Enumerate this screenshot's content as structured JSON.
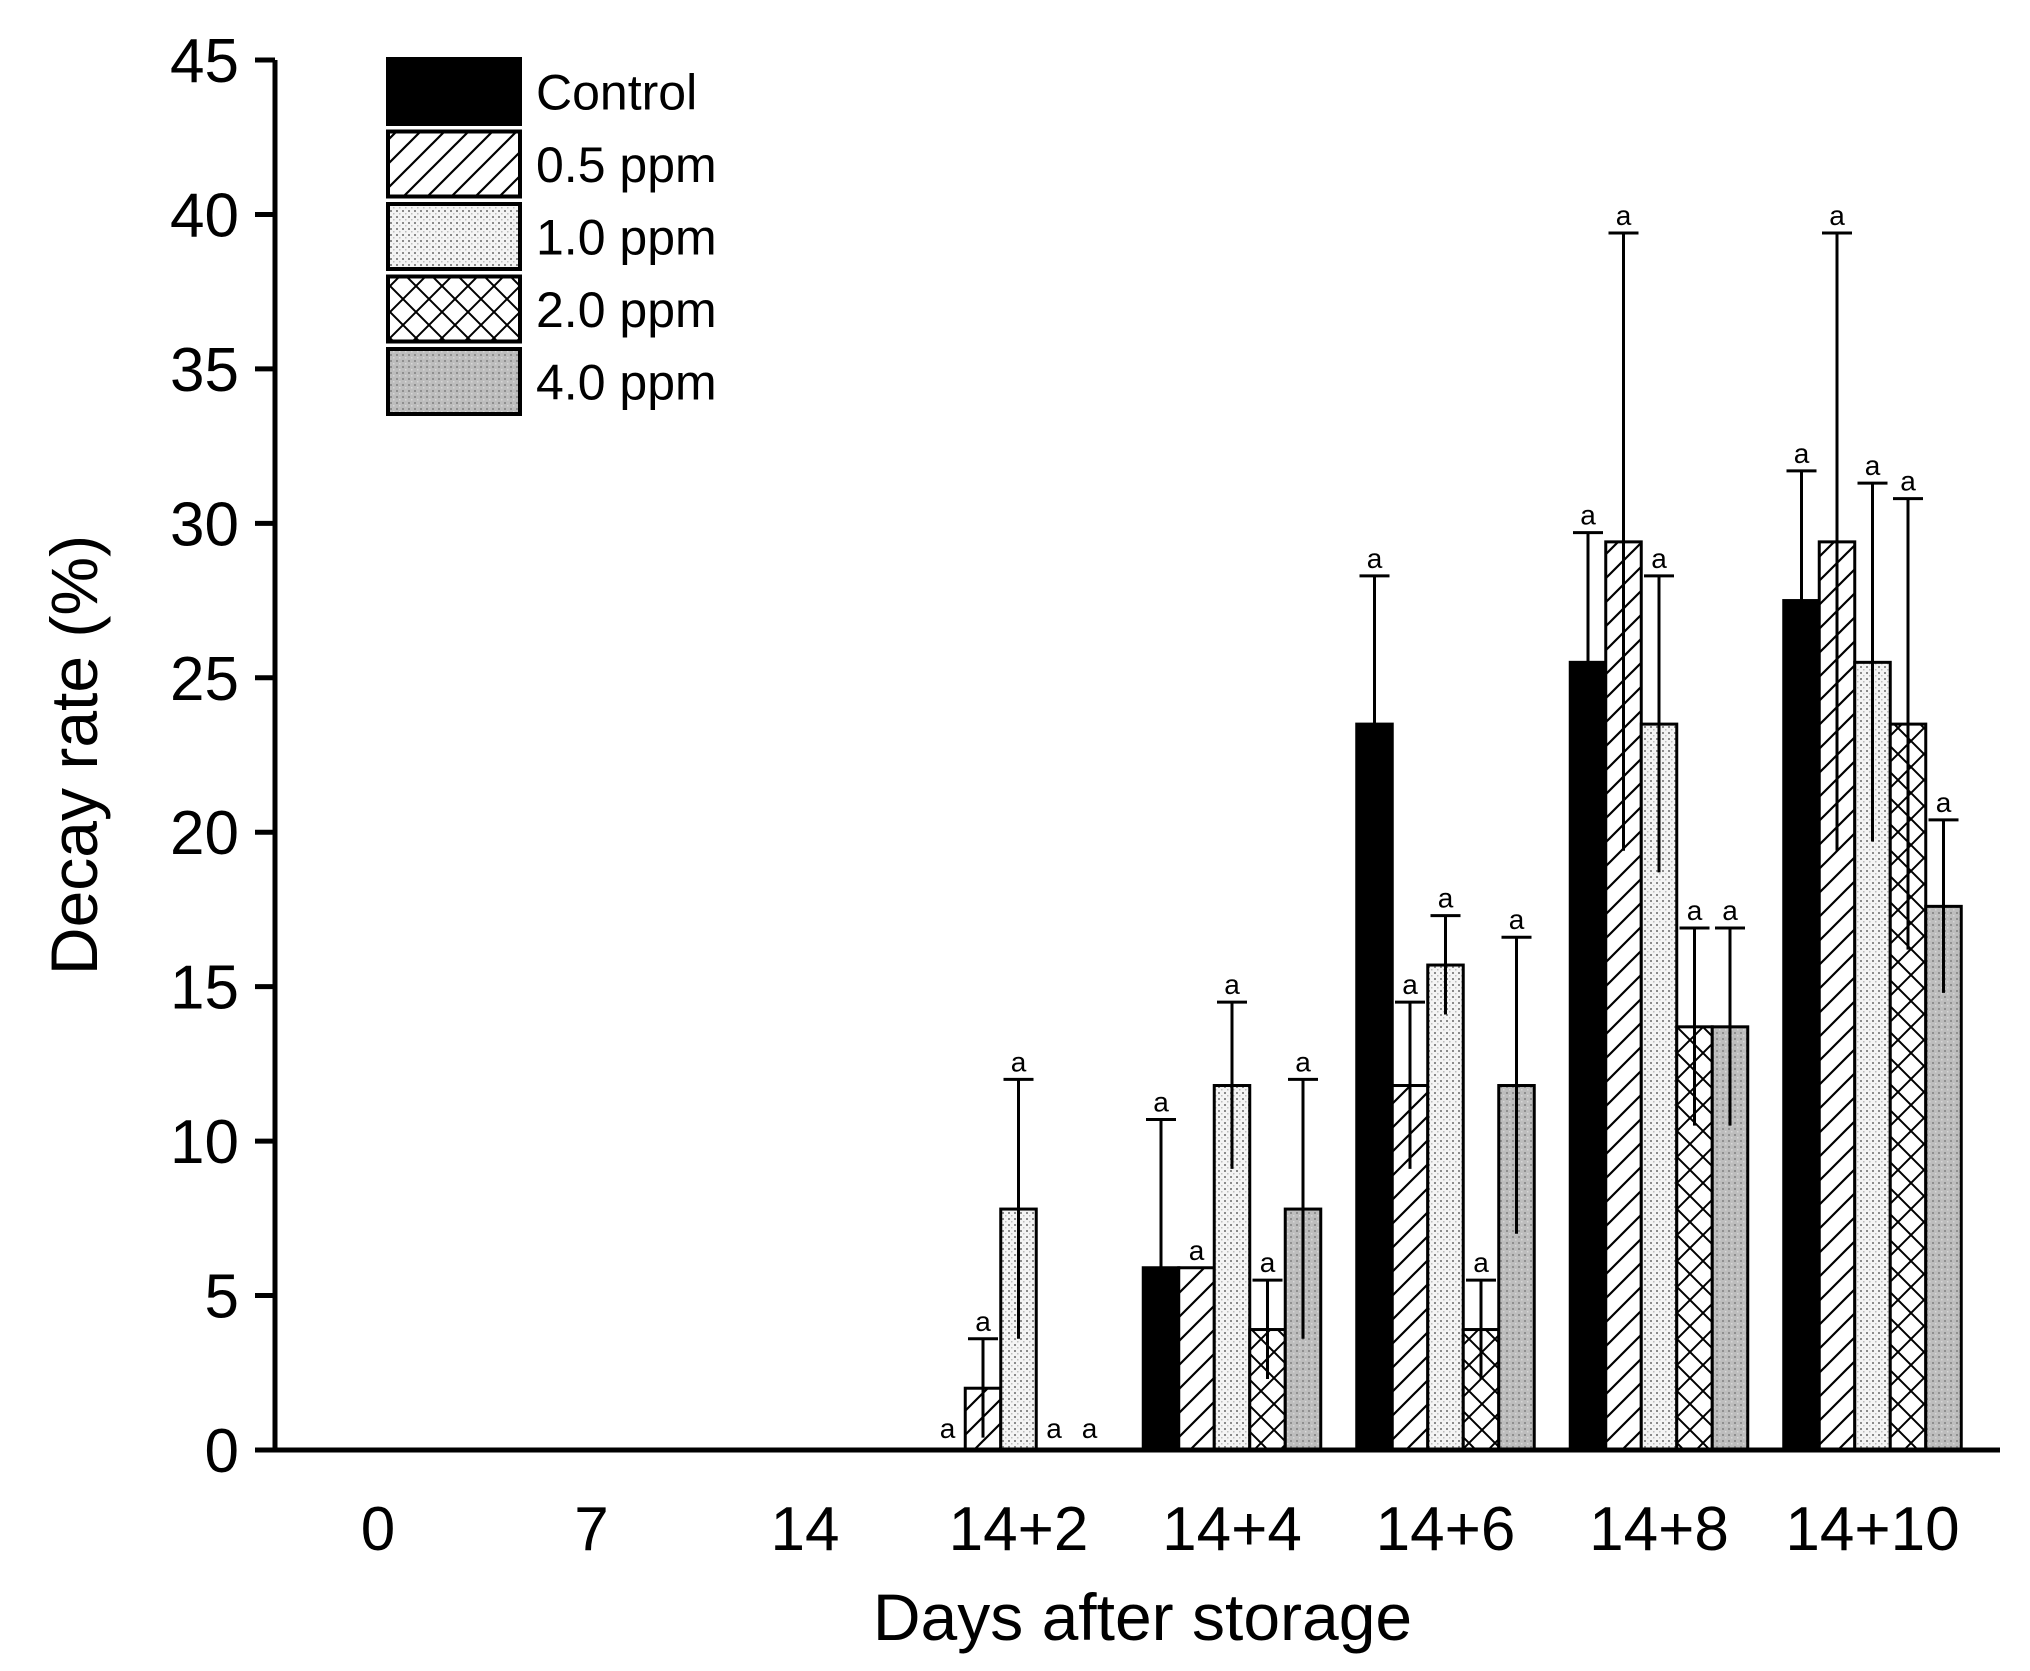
{
  "chart_data": {
    "type": "bar",
    "title": "",
    "xlabel": "Days after storage",
    "ylabel": "Decay rate (%)",
    "ylim": [
      0,
      45
    ],
    "yticks": [
      0,
      5,
      10,
      15,
      20,
      25,
      30,
      35,
      40,
      45
    ],
    "grid": false,
    "legend_position": "top-left",
    "categories": [
      "0",
      "7",
      "14",
      "14+2",
      "14+4",
      "14+6",
      "14+8",
      "14+10"
    ],
    "series": [
      {
        "name": "Control",
        "pattern": "solid-black",
        "values": [
          0,
          0,
          0,
          0,
          5.9,
          23.5,
          25.5,
          27.5
        ],
        "errors": [
          0,
          0,
          0,
          0,
          4.8,
          4.8,
          4.2,
          4.2
        ],
        "letters": [
          "",
          "",
          "",
          "a",
          "a",
          "a",
          "a",
          "a"
        ]
      },
      {
        "name": "0.5 ppm",
        "pattern": "diagonal-hatch",
        "values": [
          0,
          0,
          0,
          2.0,
          5.9,
          11.8,
          29.4,
          29.4
        ],
        "errors": [
          0,
          0,
          0,
          1.6,
          0,
          2.7,
          10.0,
          10.0
        ],
        "letters": [
          "",
          "",
          "",
          "a",
          "a",
          "a",
          "a",
          "a"
        ]
      },
      {
        "name": "1.0 ppm",
        "pattern": "fine-dots",
        "values": [
          0,
          0,
          0,
          7.8,
          11.8,
          15.7,
          23.5,
          25.5
        ],
        "errors": [
          0,
          0,
          0,
          4.2,
          2.7,
          1.6,
          4.8,
          5.8
        ],
        "letters": [
          "",
          "",
          "",
          "a",
          "a",
          "a",
          "a",
          "a"
        ]
      },
      {
        "name": "2.0 ppm",
        "pattern": "cross-hatch",
        "values": [
          0,
          0,
          0,
          0,
          3.9,
          3.9,
          13.7,
          23.5
        ],
        "errors": [
          0,
          0,
          0,
          0,
          1.6,
          1.6,
          3.2,
          7.3
        ],
        "letters": [
          "",
          "",
          "",
          "a",
          "a",
          "a",
          "a",
          "a"
        ]
      },
      {
        "name": "4.0 ppm",
        "pattern": "gray-dots",
        "values": [
          0,
          0,
          0,
          0,
          7.8,
          11.8,
          13.7,
          17.6
        ],
        "errors": [
          0,
          0,
          0,
          0,
          4.2,
          4.8,
          3.2,
          2.8
        ],
        "letters": [
          "",
          "",
          "",
          "a",
          "a",
          "a",
          "a",
          "a"
        ]
      }
    ]
  }
}
